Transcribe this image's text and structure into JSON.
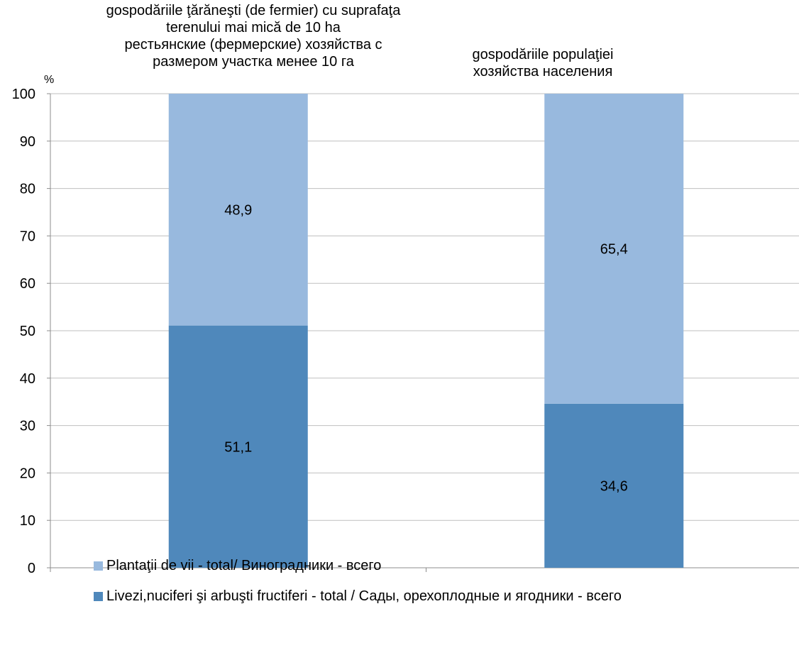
{
  "chart_data": {
    "type": "bar",
    "stacked": true,
    "unit_label": "%",
    "ylim": [
      0,
      100
    ],
    "yticks": [
      0,
      10,
      20,
      30,
      40,
      50,
      60,
      70,
      80,
      90,
      100
    ],
    "grid": true,
    "categories": [
      "gospodăriile  ţărăneşti (de fermier) cu suprafaţa\nterenului mai mică de 10 ha\nрестьянские (фермерские) хозяйства с\nразмером участка менее 10 га",
      "gospodăriile populaţiei\nхозяйства населения"
    ],
    "series": [
      {
        "name": "Livezi,nuciferi şi arbuşti fructiferi - total / Сады, орехоплодные и ягодники - всего",
        "values": [
          51.1,
          34.6
        ],
        "labels": [
          "51,1",
          "34,6"
        ],
        "color": "#4f88bb"
      },
      {
        "name": "Plantaţii de vii - total/ Виноградники - всего",
        "values": [
          48.9,
          65.4
        ],
        "labels": [
          "48,9",
          "65,4"
        ],
        "color": "#98b9de"
      }
    ],
    "legend_position": "bottom"
  }
}
